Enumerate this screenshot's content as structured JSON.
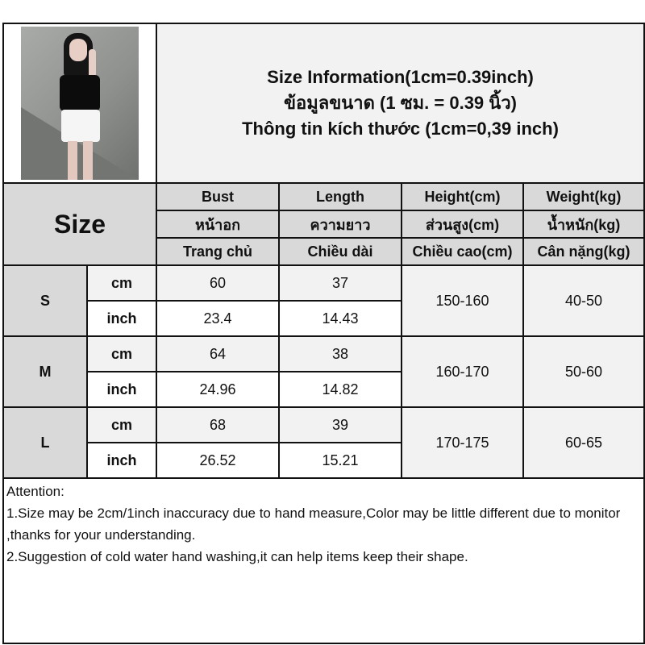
{
  "title_lines": [
    "Size Information(1cm=0.39inch)",
    "ข้อมูลขนาด (1 ซม. = 0.39 นิ้ว)",
    "Thông tin kích thước (1cm=0,39 inch)"
  ],
  "size_header": "Size",
  "columns": [
    {
      "en": "Bust",
      "th": "หน้าอก",
      "vi": "Trang chủ"
    },
    {
      "en": "Length",
      "th": "ความยาว",
      "vi": "Chiều dài"
    },
    {
      "en": "Height(cm)",
      "th": "ส่วนสูง(cm)",
      "vi": "Chiều cao(cm)"
    },
    {
      "en": "Weight(kg)",
      "th": "น้ำหนัก(kg)",
      "vi": "Cân nặng(kg)"
    }
  ],
  "units": {
    "cm": "cm",
    "inch": "inch"
  },
  "rows": [
    {
      "size": "S",
      "bust_cm": "60",
      "length_cm": "37",
      "bust_in": "23.4",
      "length_in": "14.43",
      "height": "150-160",
      "weight": "40-50"
    },
    {
      "size": "M",
      "bust_cm": "64",
      "length_cm": "38",
      "bust_in": "24.96",
      "length_in": "14.82",
      "height": "160-170",
      "weight": "50-60"
    },
    {
      "size": "L",
      "bust_cm": "68",
      "length_cm": "39",
      "bust_in": "26.52",
      "length_in": "15.21",
      "height": "170-175",
      "weight": "60-65"
    }
  ],
  "notes": [
    "Attention:",
    "1.Size may be 2cm/1inch inaccuracy due to hand measure,Color may be little different due to monitor ,thanks for your understanding.",
    "2.Suggestion of cold water hand washing,it can help items keep their shape."
  ],
  "colors": {
    "header_bg": "#d9d9d9",
    "light_bg": "#f2f2f2",
    "border": "#111111"
  }
}
